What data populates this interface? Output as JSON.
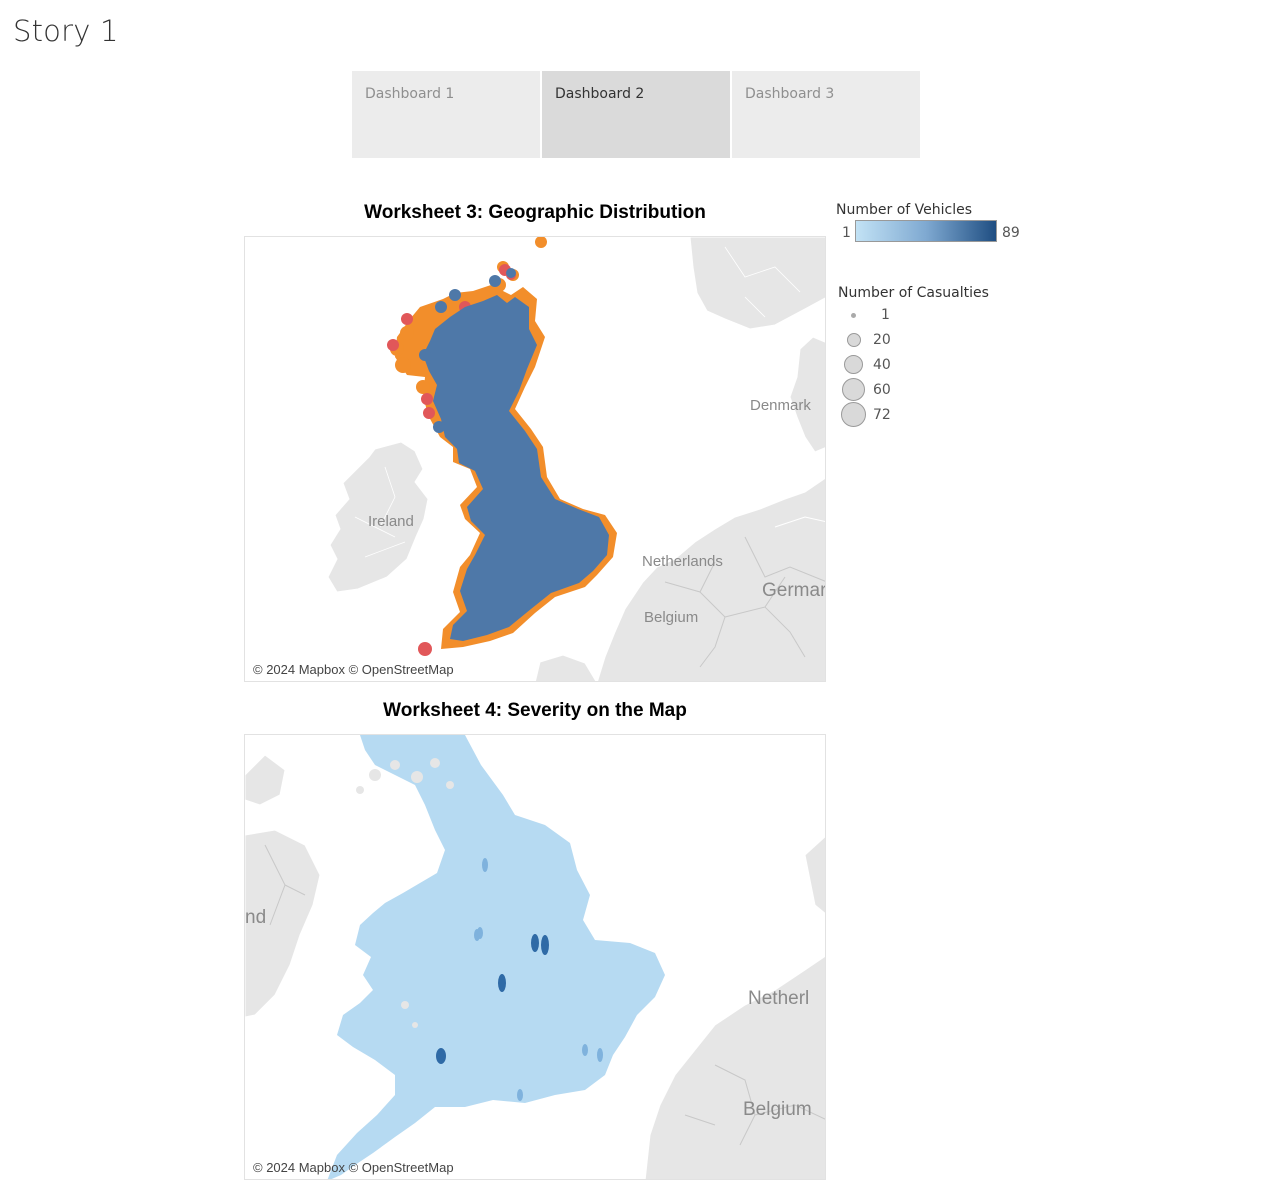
{
  "story": {
    "title": "Story 1"
  },
  "tabs": [
    {
      "label": "Dashboard 1",
      "active": false
    },
    {
      "label": "Dashboard 2",
      "active": true
    },
    {
      "label": "Dashboard 3",
      "active": false
    }
  ],
  "worksheet3": {
    "title": "Worksheet 3: Geographic Distribution",
    "attribution": "© 2024 Mapbox © OpenStreetMap",
    "places": [
      "Denmark",
      "Ireland",
      "Netherlands",
      "Germar",
      "Belgium"
    ]
  },
  "worksheet4": {
    "title": "Worksheet 4: Severity on the Map",
    "attribution": "© 2024 Mapbox © OpenStreetMap",
    "places": [
      "nd",
      "Netherl",
      "Belgium"
    ]
  },
  "legend_vehicles": {
    "title": "Number of Vehicles",
    "min": "1",
    "max": "89",
    "color_low": "#c2e2f5",
    "color_high": "#1f4e82"
  },
  "legend_casualties": {
    "title": "Number of Casualties",
    "items": [
      "1",
      "20",
      "40",
      "60",
      "72"
    ]
  },
  "colors": {
    "blue_points": "#4e78a8",
    "orange_points": "#f28e2b",
    "red_points": "#e15759",
    "light_blue_points": "#b6daf2",
    "land_gray": "#e6e6e6",
    "border_gray": "#ffffff"
  }
}
